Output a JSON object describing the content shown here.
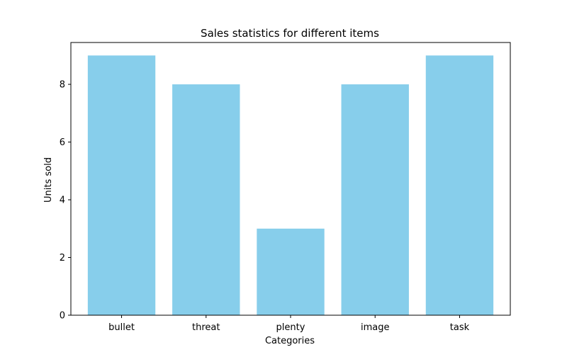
{
  "chart_data": {
    "type": "bar",
    "title": "Sales statistics for different items",
    "xlabel": "Categories",
    "ylabel": "Units sold",
    "categories": [
      "bullet",
      "threat",
      "plenty",
      "image",
      "task"
    ],
    "values": [
      9,
      8,
      3,
      8,
      9
    ],
    "ylim": [
      0,
      9.45
    ],
    "yticks": [
      "0",
      "2",
      "4",
      "6",
      "8"
    ],
    "bar_color": "#87CEEB",
    "grid": false,
    "legend": "none"
  }
}
